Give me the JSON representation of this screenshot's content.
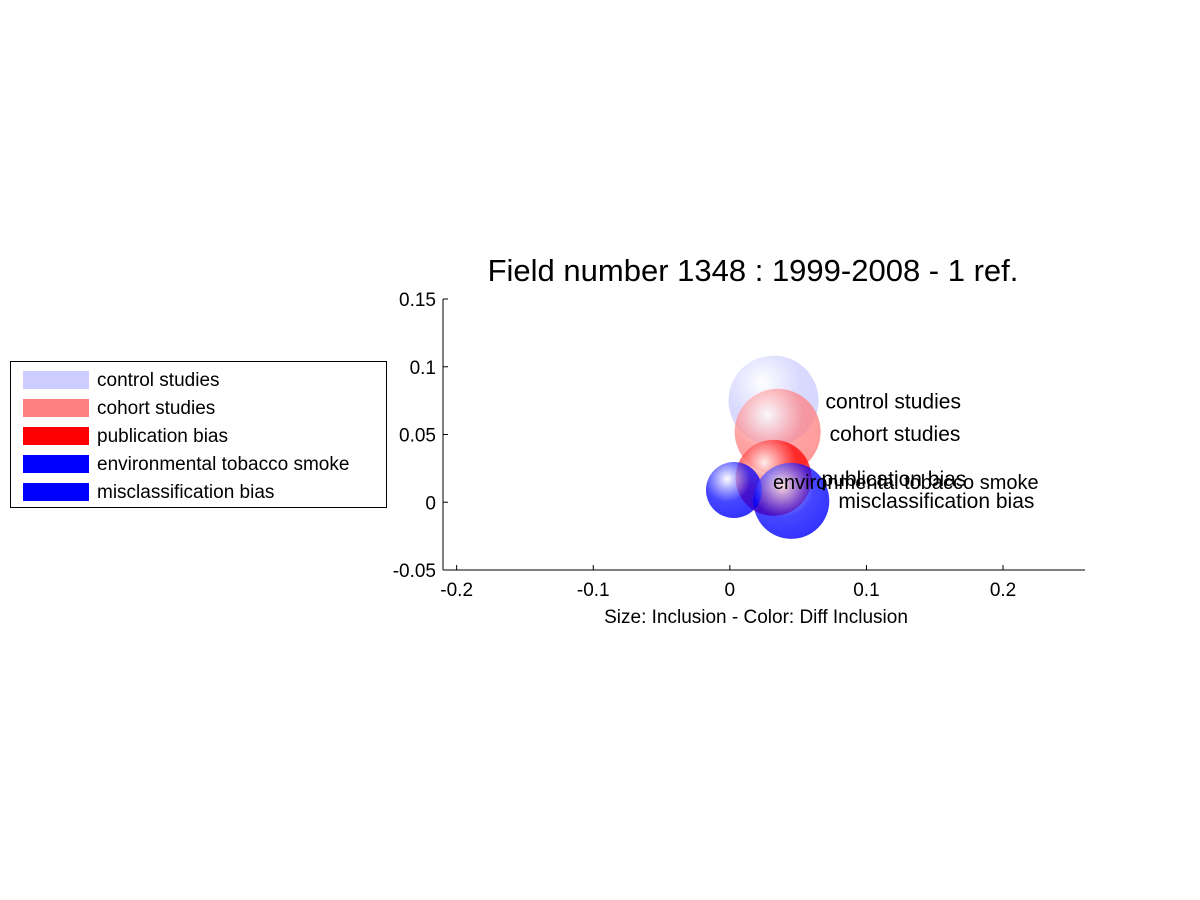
{
  "chart_data": {
    "type": "scatter",
    "title": "Field number 1348 : 1999-2008  - 1 ref.",
    "xlabel": "Size: Inclusion - Color: Diff Inclusion",
    "ylabel": "",
    "xlim": [
      -0.21,
      0.26
    ],
    "ylim": [
      -0.05,
      0.15
    ],
    "xticks": [
      -0.2,
      -0.1,
      0,
      0.1,
      0.2
    ],
    "xtick_labels": [
      "-0.2",
      "-0.1",
      "0",
      "0.1",
      "0.2"
    ],
    "yticks": [
      -0.05,
      0,
      0.05,
      0.1,
      0.15
    ],
    "ytick_labels": [
      "-0.05",
      "0",
      "0.05",
      "0.1",
      "0.15"
    ],
    "grid": false,
    "legend_position": "left",
    "series": [
      {
        "name": "control studies",
        "x": 0.032,
        "y": 0.075,
        "color": "#ccccff"
      },
      {
        "name": "cohort studies",
        "x": 0.035,
        "y": 0.052,
        "color": "#ff8080"
      },
      {
        "name": "publication bias",
        "x": 0.032,
        "y": 0.018,
        "color": "#ff0000"
      },
      {
        "name": "environmental tobacco smoke",
        "x": 0.003,
        "y": 0.009,
        "color": "#0000ff"
      },
      {
        "name": "misclassification bias",
        "x": 0.045,
        "y": 0.001,
        "color": "#0000ff"
      }
    ]
  }
}
